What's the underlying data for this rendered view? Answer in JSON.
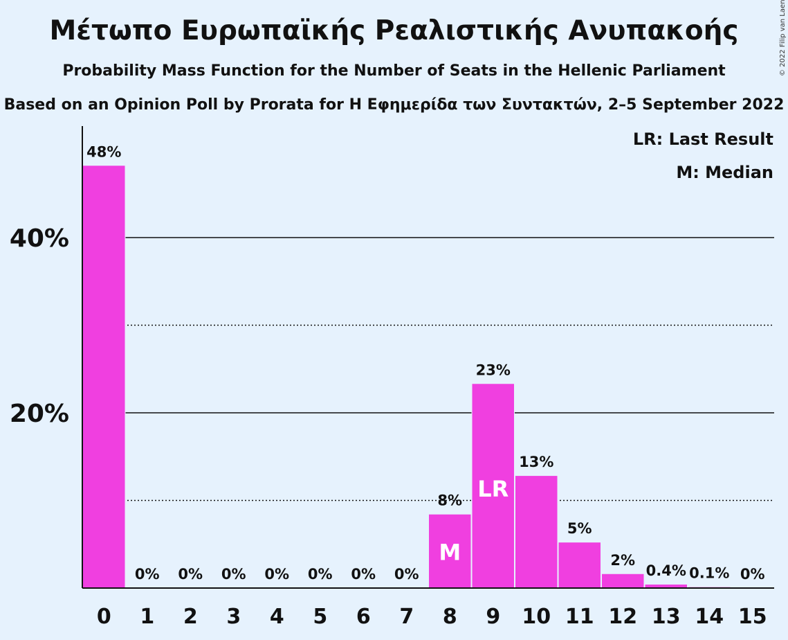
{
  "title": "Μέτωπο Ευρωπαϊκής Ρεαλιστικής Ανυπακοής",
  "subtitle": "Probability Mass Function for the Number of Seats in the Hellenic Parliament",
  "subtitle2": "Based on an Opinion Poll by Prorata for Η Εφημερίδα των Συντακτών, 2–5 September 2022",
  "copyright": "© 2022 Filip van Laenen",
  "legend": {
    "last_result": "LR: Last Result",
    "median": "M: Median"
  },
  "colors": {
    "bar": "#f03fe0",
    "background": "#e6f2fd"
  },
  "chart_data": {
    "type": "bar",
    "categories": [
      "0",
      "1",
      "2",
      "3",
      "4",
      "5",
      "6",
      "7",
      "8",
      "9",
      "10",
      "11",
      "12",
      "13",
      "14",
      "15"
    ],
    "values": [
      48.2,
      0,
      0,
      0,
      0,
      0,
      0,
      0,
      8.4,
      23.3,
      12.8,
      5.2,
      1.6,
      0.4,
      0.1,
      0
    ],
    "data_labels": [
      "48%",
      "0%",
      "0%",
      "0%",
      "0%",
      "0%",
      "0%",
      "0%",
      "8%",
      "23%",
      "13%",
      "5%",
      "2%",
      "0.4%",
      "0.1%",
      "0%"
    ],
    "y_ticks": [
      20,
      40
    ],
    "y_tick_labels": [
      "20%",
      "40%"
    ],
    "minor_gridlines": [
      10,
      30
    ],
    "ylim": [
      0,
      52
    ],
    "median_seat": "8",
    "median_marker": "M",
    "last_result_seat": "9",
    "last_result_marker": "LR",
    "legend_position": "top-right"
  }
}
